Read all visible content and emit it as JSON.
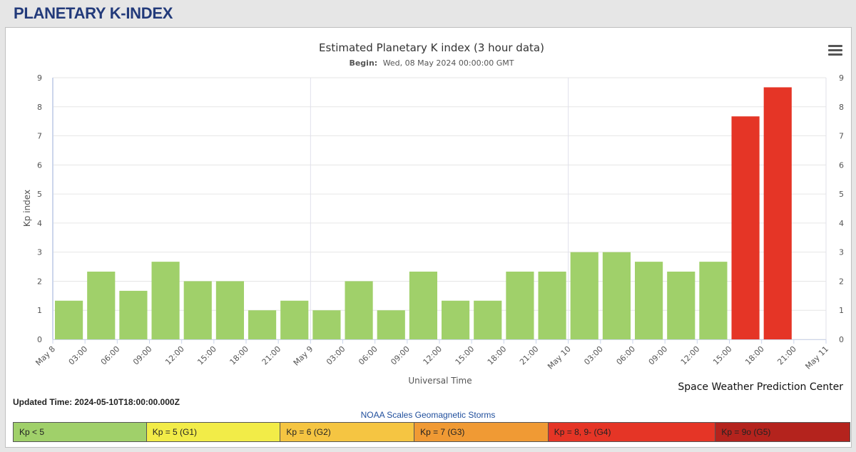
{
  "page": {
    "title": "PLANETARY K-INDEX"
  },
  "colors": {
    "low": "#a0d06a",
    "storm": "#e53526",
    "text": "#333333",
    "grid": "#e6e6e6"
  },
  "chart_data": {
    "type": "bar",
    "title": "Estimated Planetary K index (3 hour data)",
    "subtitle_label": "Begin:",
    "subtitle_value": "Wed, 08 May 2024 00:00:00 GMT",
    "xlabel": "Universal Time",
    "ylabel": "Kp index",
    "ylim": [
      0,
      9
    ],
    "yticks": [
      "0",
      "1",
      "2",
      "3",
      "4",
      "5",
      "6",
      "7",
      "8",
      "9"
    ],
    "xticks": [
      "May 8",
      "03:00",
      "06:00",
      "09:00",
      "12:00",
      "15:00",
      "18:00",
      "21:00",
      "May 9",
      "03:00",
      "06:00",
      "09:00",
      "12:00",
      "15:00",
      "18:00",
      "21:00",
      "May 10",
      "03:00",
      "06:00",
      "09:00",
      "12:00",
      "15:00",
      "18:00",
      "21:00",
      "May 11"
    ],
    "values": [
      1.33,
      2.33,
      1.67,
      2.67,
      2.0,
      2.0,
      1.0,
      1.33,
      1.0,
      2.0,
      1.0,
      2.33,
      1.33,
      1.33,
      2.33,
      2.33,
      3.0,
      3.0,
      2.67,
      2.33,
      2.67,
      7.67,
      8.67
    ],
    "series_color_rule": "Kp < 5 green, Kp >= 8 red",
    "grid": true
  },
  "updated": {
    "label": "Updated Time:",
    "value": "2024-05-10T18:00:00.000Z"
  },
  "credit": "Space Weather Prediction Center",
  "noaa_scale": {
    "title": "NOAA Scales Geomagnetic Storms",
    "items": [
      {
        "label": "Kp < 5",
        "color": "#a0d06a"
      },
      {
        "label": "Kp = 5 (G1)",
        "color": "#f2ec48"
      },
      {
        "label": "Kp = 6 (G2)",
        "color": "#f5c542"
      },
      {
        "label": "Kp = 7 (G3)",
        "color": "#f09a34"
      },
      {
        "label": "Kp = 8, 9- (G4)",
        "color": "#e53526"
      },
      {
        "label": "Kp = 9o (G5)",
        "color": "#b4231d"
      }
    ]
  }
}
